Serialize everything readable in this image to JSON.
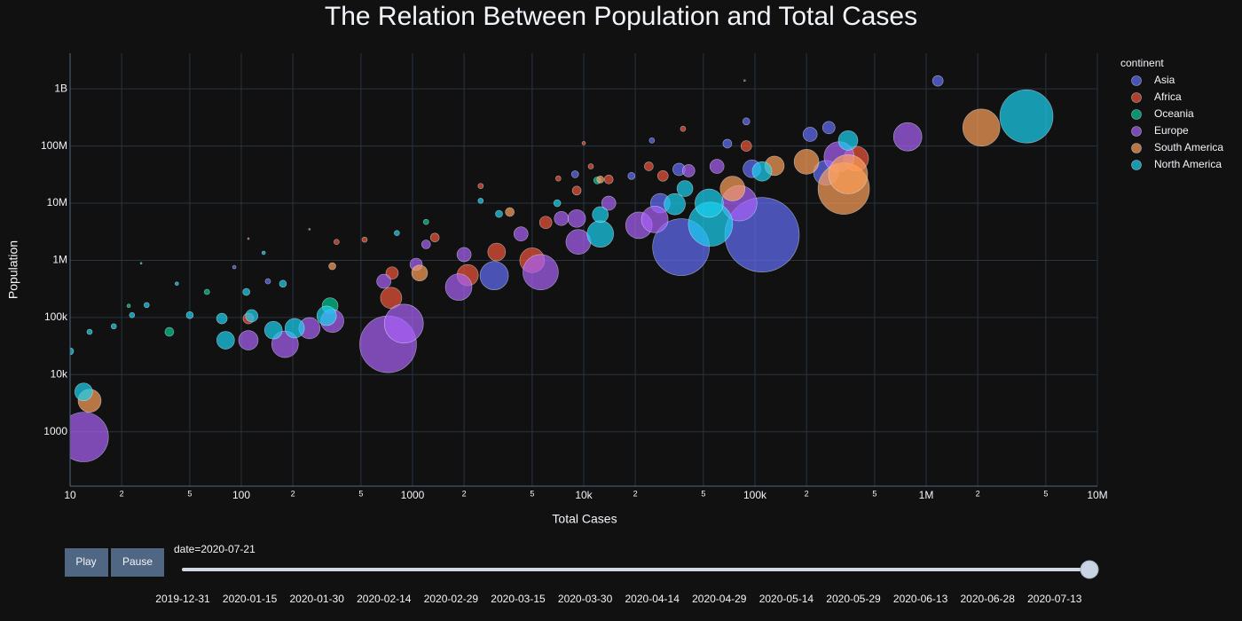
{
  "chart_data": {
    "type": "scatter",
    "title": "The Relation Between Population and Total Cases",
    "x_label": "Total Cases",
    "y_label": "Population",
    "log_x": true,
    "log_y": true,
    "grid": true,
    "xlim": [
      10,
      10000000
    ],
    "ylim": [
      112,
      4200000000
    ],
    "xticks": [
      10,
      {
        "value": 20,
        "label": "2"
      },
      {
        "value": 50,
        "label": "5"
      },
      100,
      {
        "value": 200,
        "label": "2"
      },
      {
        "value": 500,
        "label": "5"
      },
      1000,
      {
        "value": 2000,
        "label": "2"
      },
      {
        "value": 5000,
        "label": "5"
      },
      {
        "value": 10000,
        "label": "10k"
      },
      {
        "value": 20000,
        "label": "2"
      },
      {
        "value": 50000,
        "label": "5"
      },
      {
        "value": 100000,
        "label": "100k"
      },
      {
        "value": 200000,
        "label": "2"
      },
      {
        "value": 500000,
        "label": "5"
      },
      {
        "value": 1000000,
        "label": "1M"
      },
      {
        "value": 2000000,
        "label": "2"
      },
      {
        "value": 5000000,
        "label": "5"
      },
      {
        "value": 10000000,
        "label": "10M"
      }
    ],
    "yticks": [
      1000,
      {
        "value": 10000,
        "label": "10k"
      },
      {
        "value": 100000,
        "label": "100k"
      },
      {
        "value": 1000000,
        "label": "1M"
      },
      {
        "value": 10000000,
        "label": "10M"
      },
      {
        "value": 100000000,
        "label": "100M"
      },
      {
        "value": 1000000000,
        "label": "1B"
      }
    ],
    "legend_title": "continent",
    "legend": "top-right",
    "series": [
      {
        "name": "Asia",
        "color": "#636efa",
        "x": [
          1170000,
          37000,
          110000,
          3000,
          210000,
          270000,
          260000,
          89000,
          69000,
          25000,
          36000,
          143,
          91,
          87000,
          19000,
          28000,
          96000,
          8900
        ],
        "values": [
          1380000000,
          1700000,
          2800000,
          540000,
          160000000,
          210000000,
          34000000,
          270000000,
          110000000,
          125000000,
          39000000,
          430000,
          760000,
          1400000000,
          30000000,
          10000000,
          40000000,
          32000000
        ],
        "sizes": [
          36,
          1024,
          1764,
          256,
          64,
          49,
          196,
          16,
          25,
          9,
          49,
          9,
          4,
          1,
          16,
          121,
          100,
          16
        ]
      },
      {
        "name": "Africa",
        "color": "#EF553B",
        "x": [
          390000,
          89000,
          38000,
          29000,
          24000,
          5000,
          3100,
          2100,
          750,
          760,
          6000,
          9100,
          1350,
          110,
          360,
          525,
          2500,
          7100,
          14000,
          11000,
          10000,
          110,
          250
        ],
        "values": [
          60000000,
          100000000,
          200000000,
          30000000,
          44000000,
          1000000,
          1400000,
          550000,
          220000,
          600000,
          4600000,
          16600000,
          2500000,
          96000,
          2100000,
          2300000,
          20000000,
          27000000,
          26000000,
          44000000,
          112000000,
          2400000,
          3500000
        ],
        "sizes": [
          196,
          36,
          9,
          36,
          25,
          196,
          100,
          144,
          144,
          49,
          49,
          25,
          25,
          36,
          9,
          9,
          9,
          9,
          25,
          9,
          4,
          1,
          1
        ]
      },
      {
        "name": "Oceania",
        "color": "#00cc96",
        "x": [
          38,
          330,
          63,
          1200,
          12000,
          22,
          26
        ],
        "values": [
          56000,
          160000,
          280000,
          4700000,
          25000000,
          160000,
          890000
        ],
        "sizes": [
          25,
          81,
          9,
          9,
          16,
          4,
          1
        ]
      },
      {
        "name": "Europe",
        "color": "#ab63fa",
        "x": [
          12,
          720,
          890,
          180,
          250,
          340,
          110,
          5600,
          9300,
          1860,
          21000,
          81000,
          780000,
          310000,
          60000,
          680,
          1050,
          4300,
          9100,
          14000,
          26000,
          41000,
          2000,
          1200,
          7400
        ],
        "values": [
          810,
          34000,
          78000,
          34000,
          65000,
          87000,
          40000,
          620000,
          2100000,
          340000,
          4100000,
          10000000,
          145000000,
          65000000,
          44000000,
          430000,
          850000,
          2900000,
          5400000,
          10000000,
          5200000,
          37000000,
          1260000,
          1900000,
          5400000
        ],
        "sizes": [
          784,
          1024,
          484,
          225,
          144,
          169,
          121,
          400,
          196,
          225,
          225,
          400,
          256,
          289,
          64,
          64,
          49,
          64,
          100,
          64,
          225,
          49,
          64,
          25,
          64
        ]
      },
      {
        "name": "South America",
        "color": "#FFA15A",
        "x": [
          13,
          330000,
          350000,
          2100000,
          200000,
          130000,
          74000,
          1100,
          340,
          3700,
          12500
        ],
        "values": [
          3500,
          18000000,
          32000000,
          210000000,
          53000000,
          45000000,
          18000000,
          600000,
          790000,
          7000000,
          26000000
        ],
        "sizes": [
          169,
          841,
          484,
          441,
          196,
          121,
          196,
          81,
          16,
          25,
          16
        ]
      },
      {
        "name": "North America",
        "color": "#19d3f3",
        "x": [
          3850000,
          55000,
          54000,
          34000,
          12500,
          12500,
          350000,
          110000,
          12,
          81,
          154,
          205,
          315,
          115,
          77,
          50,
          10,
          13,
          18,
          23,
          28,
          42,
          107,
          175,
          135,
          810,
          2500,
          3200,
          7000,
          39000
        ],
        "values": [
          330000000,
          4300000,
          10000000,
          9600000,
          2900000,
          6300000,
          125000000,
          36000000,
          5000,
          40000,
          60000,
          65000,
          107000,
          107000,
          96000,
          110000,
          25700,
          56000,
          70000,
          110000,
          165000,
          390000,
          280000,
          390000,
          1350000,
          3000000,
          11000000,
          6500000,
          10000000,
          18000000
        ],
        "sizes": [
          900,
          625,
          256,
          144,
          225,
          81,
          121,
          121,
          100,
          100,
          100,
          121,
          121,
          49,
          36,
          16,
          16,
          9,
          9,
          9,
          9,
          4,
          16,
          16,
          4,
          9,
          9,
          16,
          16,
          81
        ]
      }
    ],
    "controls": {
      "buttons": [
        "Play",
        "Pause"
      ],
      "current_label": "date=2020-07-21",
      "steps": [
        "2019-12-31",
        "2020-01-15",
        "2020-01-30",
        "2020-02-14",
        "2020-02-29",
        "2020-03-15",
        "2020-03-30",
        "2020-04-14",
        "2020-04-29",
        "2020-05-14",
        "2020-05-29",
        "2020-06-13",
        "2020-06-28",
        "2020-07-13"
      ]
    }
  }
}
